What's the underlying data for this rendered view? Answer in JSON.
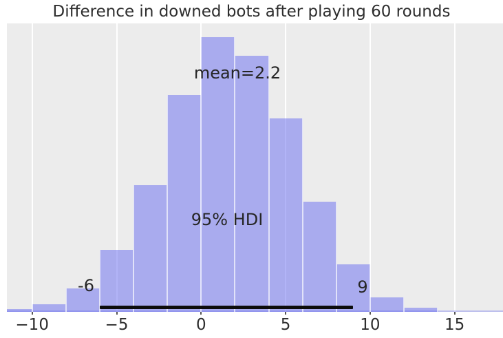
{
  "chart_data": {
    "type": "histogram",
    "title": "Difference in downed bots after playing 60 rounds",
    "xlabel": "",
    "ylabel": "",
    "grid": "vertical-only",
    "legend": null,
    "xlim": [
      -11.5,
      17.9
    ],
    "bin_edges": [
      -12,
      -10,
      -8,
      -6,
      -4,
      -2,
      0,
      2,
      4,
      6,
      8,
      10,
      12,
      14
    ],
    "bin_heights_rel": [
      0.01,
      0.028,
      0.085,
      0.226,
      0.461,
      0.789,
      1.0,
      0.932,
      0.704,
      0.401,
      0.173,
      0.053,
      0.015
    ],
    "x_ticks": [
      {
        "value": -10,
        "label": "−10"
      },
      {
        "value": -5,
        "label": "−5"
      },
      {
        "value": 0,
        "label": "0"
      },
      {
        "value": 5,
        "label": "5"
      },
      {
        "value": 10,
        "label": "10"
      },
      {
        "value": 15,
        "label": "15"
      }
    ],
    "mean": 2.2,
    "hdi_percent": 95,
    "hdi_interval": [
      -6,
      9
    ],
    "annotations": {
      "mean_label": "mean=2.2",
      "hdi_label": "95% HDI",
      "hdi_lower_label": "-6",
      "hdi_upper_label": "9"
    },
    "colors": {
      "bar_fill_solid": "#a9abee",
      "bar_fill_rgba": "rgba(102,106,240,0.5)",
      "bar_edge": "rgba(255,255,255,0.65)",
      "plot_bg": "#ececec",
      "grid_line": "#ffffff",
      "hdi_line": "#0c0c0c",
      "text": "#2e2e2e"
    }
  }
}
